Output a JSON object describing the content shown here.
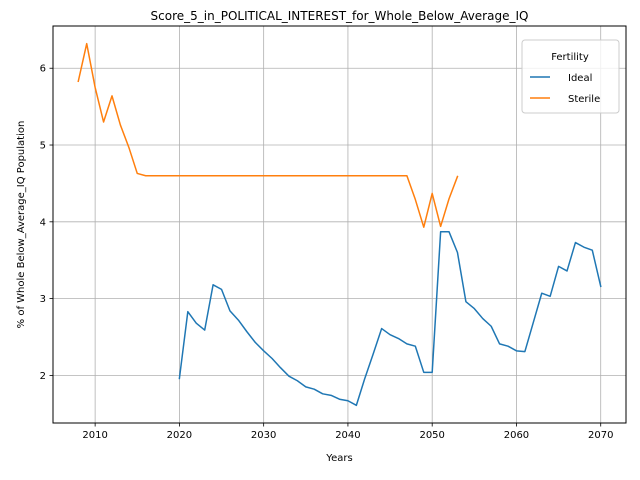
{
  "chart_data": {
    "type": "line",
    "title": "Score_5_in_POLITICAL_INTEREST_for_Whole_Below_Average_IQ",
    "xlabel": "Years",
    "ylabel": "% of Whole Below_Average_IQ Population",
    "xlim": [
      2005,
      2073
    ],
    "ylim": [
      1.38,
      6.55
    ],
    "xticks": [
      2010,
      2020,
      2030,
      2040,
      2050,
      2060,
      2070
    ],
    "yticks": [
      2,
      3,
      4,
      5,
      6
    ],
    "grid": true,
    "legend": {
      "title": "Fertility",
      "placement": "top-right"
    },
    "series": [
      {
        "name": "Ideal",
        "color": "#1f77b4",
        "points": [
          [
            2020,
            1.96
          ],
          [
            2021,
            2.83
          ],
          [
            2022,
            2.68
          ],
          [
            2023,
            2.59
          ],
          [
            2024,
            3.18
          ],
          [
            2025,
            3.12
          ],
          [
            2026,
            2.84
          ],
          [
            2027,
            2.72
          ],
          [
            2028,
            2.57
          ],
          [
            2029,
            2.43
          ],
          [
            2030,
            2.32
          ],
          [
            2031,
            2.22
          ],
          [
            2032,
            2.1
          ],
          [
            2033,
            1.99
          ],
          [
            2034,
            1.93
          ],
          [
            2035,
            1.85
          ],
          [
            2036,
            1.82
          ],
          [
            2037,
            1.76
          ],
          [
            2038,
            1.74
          ],
          [
            2039,
            1.69
          ],
          [
            2040,
            1.67
          ],
          [
            2041,
            1.61
          ],
          [
            2042,
            1.96
          ],
          [
            2043,
            2.28
          ],
          [
            2044,
            2.61
          ],
          [
            2045,
            2.53
          ],
          [
            2046,
            2.48
          ],
          [
            2047,
            2.41
          ],
          [
            2048,
            2.38
          ],
          [
            2049,
            2.04
          ],
          [
            2050,
            2.04
          ],
          [
            2051,
            3.87
          ],
          [
            2052,
            3.87
          ],
          [
            2053,
            3.6
          ],
          [
            2054,
            2.96
          ],
          [
            2055,
            2.87
          ],
          [
            2056,
            2.74
          ],
          [
            2057,
            2.64
          ],
          [
            2058,
            2.41
          ],
          [
            2059,
            2.38
          ],
          [
            2060,
            2.32
          ],
          [
            2061,
            2.31
          ],
          [
            2062,
            2.69
          ],
          [
            2063,
            3.07
          ],
          [
            2064,
            3.03
          ],
          [
            2065,
            3.42
          ],
          [
            2066,
            3.36
          ],
          [
            2067,
            3.73
          ],
          [
            2068,
            3.67
          ],
          [
            2069,
            3.63
          ],
          [
            2070,
            3.16
          ]
        ]
      },
      {
        "name": "Sterile",
        "color": "#ff7f0e",
        "points": [
          [
            2008,
            5.83
          ],
          [
            2009,
            6.32
          ],
          [
            2010,
            5.75
          ],
          [
            2011,
            5.3
          ],
          [
            2012,
            5.64
          ],
          [
            2013,
            5.26
          ],
          [
            2014,
            4.97
          ],
          [
            2015,
            4.63
          ],
          [
            2016,
            4.6
          ],
          [
            2017,
            4.6
          ],
          [
            2018,
            4.6
          ],
          [
            2019,
            4.6
          ],
          [
            2020,
            4.6
          ],
          [
            2021,
            4.6
          ],
          [
            2022,
            4.6
          ],
          [
            2023,
            4.6
          ],
          [
            2024,
            4.6
          ],
          [
            2025,
            4.6
          ],
          [
            2026,
            4.6
          ],
          [
            2027,
            4.6
          ],
          [
            2028,
            4.6
          ],
          [
            2029,
            4.6
          ],
          [
            2030,
            4.6
          ],
          [
            2031,
            4.6
          ],
          [
            2032,
            4.6
          ],
          [
            2033,
            4.6
          ],
          [
            2034,
            4.6
          ],
          [
            2035,
            4.6
          ],
          [
            2036,
            4.6
          ],
          [
            2037,
            4.6
          ],
          [
            2038,
            4.6
          ],
          [
            2039,
            4.6
          ],
          [
            2040,
            4.6
          ],
          [
            2041,
            4.6
          ],
          [
            2042,
            4.6
          ],
          [
            2043,
            4.6
          ],
          [
            2044,
            4.6
          ],
          [
            2045,
            4.6
          ],
          [
            2046,
            4.6
          ],
          [
            2047,
            4.6
          ],
          [
            2048,
            4.29
          ],
          [
            2049,
            3.93
          ],
          [
            2050,
            4.37
          ],
          [
            2051,
            3.94
          ],
          [
            2052,
            4.3
          ],
          [
            2053,
            4.59
          ]
        ]
      }
    ]
  }
}
